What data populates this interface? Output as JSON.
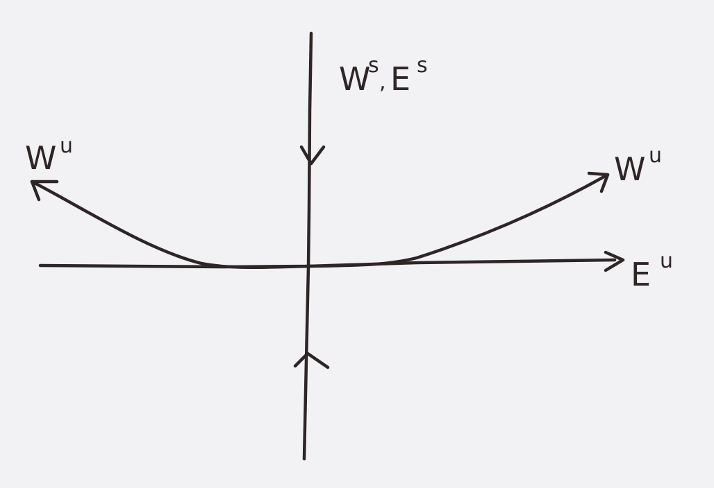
{
  "diagram": {
    "labels": {
      "stable_manifold": {
        "base": "W",
        "sup": "s"
      },
      "separator": ",",
      "stable_eigenspace": {
        "base": "E",
        "sup": "s"
      },
      "unstable_manifold_left": {
        "base": "W",
        "sup": "u"
      },
      "unstable_manifold_right": {
        "base": "W",
        "sup": "u"
      },
      "unstable_eigenspace": {
        "base": "E",
        "sup": "u"
      }
    },
    "ink_color": "#2e2626",
    "paper_color": "#f2f2f4"
  }
}
